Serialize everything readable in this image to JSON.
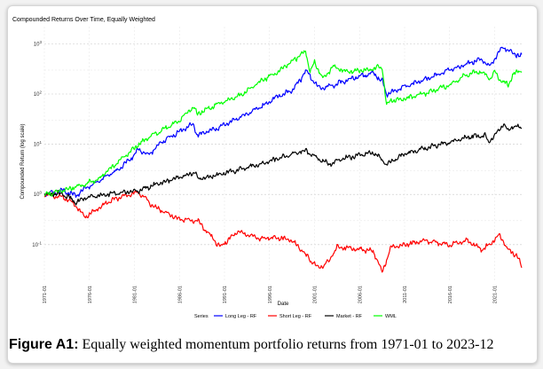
{
  "chart_data": {
    "type": "line",
    "title": "Compounded Returns Over Time, Equally Weighted",
    "xlabel": "Date",
    "ylabel": "Compounded Return (log scale)",
    "y_scale": "log",
    "ylim": [
      0.018,
      2200
    ],
    "xlim": [
      1971.0,
      2024.0
    ],
    "grid": true,
    "legend_position": "bottom",
    "legend_title": "Series",
    "x_tick_labels": [
      "1971-01",
      "1976-01",
      "1981-01",
      "1986-01",
      "1991-01",
      "1996-01",
      "2001-01",
      "2006-01",
      "2011-01",
      "2016-01",
      "2021-01"
    ],
    "x_ticks": [
      1971.0,
      1976.0,
      1981.0,
      1986.0,
      1991.0,
      1996.0,
      2001.0,
      2006.0,
      2011.0,
      2016.0,
      2021.0
    ],
    "y_tick_labels": [
      "10^3",
      "10^2",
      "10^1",
      "10^0",
      "10^-1"
    ],
    "y_ticks": [
      1000,
      100,
      10,
      1,
      0.1
    ],
    "series": [
      {
        "name": "Long Leg - RF",
        "color": "#0000ff",
        "x": [
          1971.0,
          1973.0,
          1974.5,
          1975.5,
          1977.0,
          1979.0,
          1980.5,
          1981.5,
          1982.5,
          1984.0,
          1986.0,
          1987.5,
          1988.0,
          1990.5,
          1992.0,
          1995.0,
          1997.0,
          1998.5,
          1999.5,
          2000.0,
          2001.5,
          2003.0,
          2005.0,
          2007.5,
          2008.5,
          2009.0,
          2011.0,
          2013.5,
          2016.0,
          2018.0,
          2019.5,
          2020.5,
          2021.5,
          2022.0,
          2023.0,
          2024.0
        ],
        "y": [
          1.0,
          1.2,
          0.95,
          1.3,
          1.8,
          3.0,
          5.0,
          8.0,
          6.0,
          11.0,
          18.0,
          25.0,
          15.0,
          22.0,
          30.0,
          55.0,
          90.0,
          120.0,
          200.0,
          300.0,
          130.0,
          150.0,
          200.0,
          260.0,
          180.0,
          100.0,
          140.0,
          200.0,
          300.0,
          400.0,
          500.0,
          350.0,
          700.0,
          850.0,
          650.0,
          560.0
        ]
      },
      {
        "name": "Short Leg - RF",
        "color": "#ff0000",
        "x": [
          1971.0,
          1973.0,
          1974.5,
          1975.5,
          1978.0,
          1980.5,
          1981.5,
          1983.0,
          1986.0,
          1988.0,
          1990.5,
          1992.5,
          1995.0,
          1997.0,
          1998.5,
          1999.5,
          2000.5,
          2001.5,
          2002.5,
          2003.5,
          2005.0,
          2007.5,
          2008.5,
          2009.5,
          2011.0,
          2013.5,
          2016.0,
          2018.0,
          2019.5,
          2020.5,
          2021.5,
          2022.5,
          2023.5,
          2024.0
        ],
        "y": [
          1.0,
          0.9,
          0.6,
          0.35,
          0.7,
          1.0,
          1.1,
          0.6,
          0.32,
          0.3,
          0.09,
          0.18,
          0.13,
          0.14,
          0.12,
          0.08,
          0.05,
          0.035,
          0.045,
          0.09,
          0.085,
          0.075,
          0.028,
          0.09,
          0.1,
          0.12,
          0.1,
          0.12,
          0.08,
          0.1,
          0.16,
          0.08,
          0.06,
          0.035
        ]
      },
      {
        "name": "Market - RF",
        "color": "#000000",
        "x": [
          1971.0,
          1973.0,
          1974.5,
          1976.0,
          1978.0,
          1980.0,
          1981.5,
          1983.0,
          1986.0,
          1987.8,
          1988.0,
          1990.5,
          1992.0,
          1995.0,
          1998.0,
          2000.0,
          2002.5,
          2004.0,
          2007.5,
          2009.0,
          2011.0,
          2013.5,
          2016.0,
          2018.0,
          2020.0,
          2020.3,
          2022.0,
          2022.5,
          2023.0,
          2024.0
        ],
        "y": [
          1.0,
          1.05,
          0.7,
          0.9,
          1.0,
          1.1,
          1.2,
          1.5,
          2.2,
          2.8,
          2.0,
          2.5,
          3.0,
          4.0,
          6.0,
          7.5,
          4.0,
          5.0,
          7.0,
          4.0,
          6.5,
          8.5,
          11.0,
          14.0,
          15.0,
          11.0,
          25.0,
          18.0,
          23.0,
          21.0
        ]
      },
      {
        "name": "WML",
        "color": "#00ff00",
        "x": [
          1971.0,
          1973.0,
          1975.0,
          1977.0,
          1980.0,
          1981.5,
          1983.0,
          1986.0,
          1987.5,
          1988.0,
          1990.0,
          1993.0,
          1995.0,
          1997.0,
          1998.5,
          2000.0,
          2000.5,
          2001.0,
          2002.0,
          2003.0,
          2004.5,
          2007.0,
          2008.5,
          2009.0,
          2009.5,
          2011.0,
          2013.0,
          2016.0,
          2018.0,
          2019.5,
          2020.5,
          2021.0,
          2021.5,
          2022.5,
          2023.0,
          2024.0
        ],
        "y": [
          1.0,
          1.2,
          1.5,
          2.0,
          6.0,
          10.0,
          15.0,
          30.0,
          55.0,
          40.0,
          60.0,
          100.0,
          180.0,
          280.0,
          450.0,
          700.0,
          280.0,
          420.0,
          200.0,
          350.0,
          280.0,
          300.0,
          350.0,
          60.0,
          75.0,
          80.0,
          100.0,
          150.0,
          250.0,
          280.0,
          200.0,
          280.0,
          200.0,
          150.0,
          250.0,
          300.0
        ]
      }
    ]
  },
  "caption": {
    "label": "Figure A1:",
    "text": " Equally weighted momentum portfolio returns from 1971-01 to 2023-12"
  }
}
